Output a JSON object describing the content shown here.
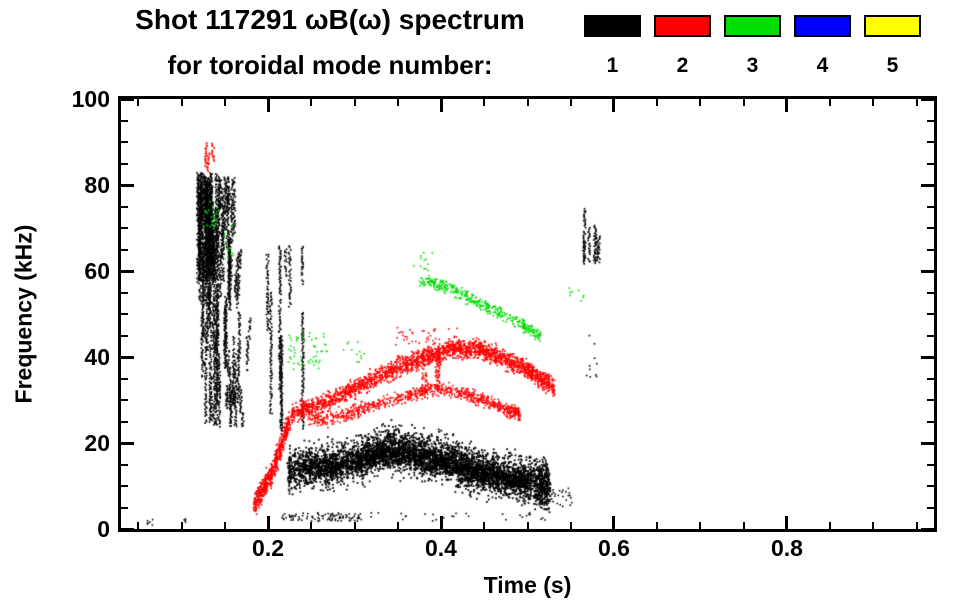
{
  "chart_data": {
    "type": "scatter",
    "title": "Shot 117291 ωB(ω) spectrum",
    "subtitle": "for toroidal mode number:",
    "xlabel": "Time (s)",
    "ylabel": "Frequency (kHz)",
    "xlim": [
      0.03,
      0.97
    ],
    "ylim": [
      0,
      100
    ],
    "xticks": [
      0.2,
      0.4,
      0.6,
      0.8
    ],
    "xtick_labels": [
      "0.2",
      "0.4",
      "0.6",
      "0.8"
    ],
    "yticks": [
      0,
      20,
      40,
      60,
      80,
      100
    ],
    "ytick_labels": [
      "0",
      "20",
      "40",
      "60",
      "80",
      "100"
    ],
    "x_minor_step": 0.05,
    "y_minor_step": 5,
    "grid": false,
    "legend_position": "top-right",
    "legend": [
      {
        "label": "1",
        "color": "#000000"
      },
      {
        "label": "2",
        "color": "#ff0000"
      },
      {
        "label": "3",
        "color": "#00dd00"
      },
      {
        "label": "4",
        "color": "#0000ff"
      },
      {
        "label": "5",
        "color": "#ffff00"
      }
    ],
    "series": [
      {
        "name": "n=1",
        "color": "#000000",
        "clusters": [
          {
            "type": "streaks",
            "t0": 0.118,
            "t1": 0.165,
            "fmin": 24,
            "fmax": 82,
            "n": 55,
            "lmin": 6,
            "lmax": 26
          },
          {
            "type": "streaks",
            "t0": 0.118,
            "t1": 0.142,
            "fmin": 58,
            "fmax": 83,
            "n": 38,
            "lmin": 8,
            "lmax": 22
          },
          {
            "type": "streaks",
            "t0": 0.148,
            "t1": 0.178,
            "fmin": 36,
            "fmax": 68,
            "n": 12,
            "lmin": 4,
            "lmax": 14
          },
          {
            "type": "streaks",
            "t0": 0.15,
            "t1": 0.17,
            "fmin": 24,
            "fmax": 34,
            "n": 6,
            "lmin": 3,
            "lmax": 8
          },
          {
            "type": "streaks",
            "t0": 0.193,
            "t1": 0.245,
            "fmin": 23,
            "fmax": 66,
            "n": 9,
            "lmin": 12,
            "lmax": 36
          },
          {
            "type": "band",
            "pts": [
              [
                0.222,
                14
              ],
              [
                0.25,
                15
              ],
              [
                0.28,
                15
              ],
              [
                0.31,
                17
              ],
              [
                0.335,
                19
              ],
              [
                0.36,
                18
              ],
              [
                0.385,
                17
              ],
              [
                0.41,
                16
              ],
              [
                0.435,
                14
              ],
              [
                0.46,
                13
              ],
              [
                0.485,
                12
              ],
              [
                0.51,
                11
              ],
              [
                0.525,
                10
              ]
            ],
            "w": 5,
            "n": 5200,
            "s": 1.8,
            "ph": 1.2
          },
          {
            "type": "band",
            "pts": [
              [
                0.24,
                14
              ],
              [
                0.3,
                16
              ],
              [
                0.35,
                18
              ],
              [
                0.4,
                16
              ],
              [
                0.45,
                13
              ],
              [
                0.5,
                11
              ]
            ],
            "w": 2.6,
            "n": 2400,
            "s": 1.8,
            "ph": 2.1
          },
          {
            "type": "specks",
            "t0": 0.215,
            "t1": 0.305,
            "fmin": 2,
            "fmax": 4,
            "n": 90
          },
          {
            "type": "specks",
            "t0": 0.305,
            "t1": 0.52,
            "fmin": 2,
            "fmax": 4,
            "n": 30
          },
          {
            "type": "specks",
            "t0": 0.058,
            "t1": 0.066,
            "fmin": 1,
            "fmax": 3,
            "n": 6
          },
          {
            "type": "specks",
            "t0": 0.099,
            "t1": 0.104,
            "fmin": 1.5,
            "fmax": 3,
            "n": 4
          },
          {
            "type": "specks",
            "t0": 0.515,
            "t1": 0.553,
            "fmin": 5,
            "fmax": 10,
            "n": 40
          },
          {
            "type": "streaks",
            "t0": 0.563,
            "t1": 0.585,
            "fmin": 62,
            "fmax": 77,
            "n": 6,
            "lmin": 6,
            "lmax": 14
          },
          {
            "type": "specks",
            "t0": 0.565,
            "t1": 0.58,
            "fmin": 35,
            "fmax": 46,
            "n": 10
          }
        ]
      },
      {
        "name": "n=2",
        "color": "#ff0000",
        "clusters": [
          {
            "type": "streaks",
            "t0": 0.127,
            "t1": 0.136,
            "fmin": 83,
            "fmax": 90,
            "n": 3,
            "lmin": 4,
            "lmax": 7
          },
          {
            "type": "band",
            "pts": [
              [
                0.183,
                6
              ],
              [
                0.195,
                10
              ],
              [
                0.205,
                14
              ],
              [
                0.215,
                20
              ],
              [
                0.224,
                26
              ]
            ],
            "w": 2.4,
            "n": 750,
            "s": 1.7,
            "ph": 0.4
          },
          {
            "type": "band",
            "pts": [
              [
                0.226,
                27
              ],
              [
                0.26,
                29
              ],
              [
                0.3,
                33
              ],
              [
                0.34,
                37
              ],
              [
                0.38,
                40
              ],
              [
                0.41,
                42
              ],
              [
                0.44,
                42
              ],
              [
                0.47,
                40
              ],
              [
                0.5,
                37
              ],
              [
                0.53,
                33
              ]
            ],
            "w": 2.1,
            "n": 2800,
            "s": 1.7,
            "ph": 3.0
          },
          {
            "type": "band",
            "pts": [
              [
                0.245,
                25
              ],
              [
                0.28,
                26
              ],
              [
                0.32,
                29
              ],
              [
                0.36,
                31
              ],
              [
                0.39,
                33
              ],
              [
                0.42,
                32
              ],
              [
                0.45,
                30
              ],
              [
                0.475,
                28
              ],
              [
                0.49,
                27
              ]
            ],
            "w": 1.5,
            "n": 1200,
            "s": 1.6,
            "ph": 4.2
          },
          {
            "type": "streaks",
            "t0": 0.378,
            "t1": 0.4,
            "fmin": 32,
            "fmax": 42,
            "n": 6,
            "lmin": 5,
            "lmax": 10
          },
          {
            "type": "specks",
            "t0": 0.345,
            "t1": 0.42,
            "fmin": 43,
            "fmax": 47,
            "n": 40
          }
        ]
      },
      {
        "name": "n=3",
        "color": "#00dd00",
        "clusters": [
          {
            "type": "specks",
            "t0": 0.125,
            "t1": 0.142,
            "fmin": 70,
            "fmax": 77,
            "n": 22
          },
          {
            "type": "specks",
            "t0": 0.148,
            "t1": 0.163,
            "fmin": 63,
            "fmax": 71,
            "n": 12
          },
          {
            "type": "specks",
            "t0": 0.222,
            "t1": 0.268,
            "fmin": 37,
            "fmax": 46,
            "n": 55
          },
          {
            "type": "specks",
            "t0": 0.285,
            "t1": 0.312,
            "fmin": 39,
            "fmax": 44,
            "n": 12
          },
          {
            "type": "band",
            "pts": [
              [
                0.375,
                58
              ],
              [
                0.4,
                57
              ],
              [
                0.43,
                54
              ],
              [
                0.46,
                51
              ],
              [
                0.49,
                48
              ],
              [
                0.515,
                45
              ]
            ],
            "w": 1.4,
            "n": 520,
            "s": 1.6,
            "ph": 1.8
          },
          {
            "type": "specks",
            "t0": 0.365,
            "t1": 0.392,
            "fmin": 60,
            "fmax": 65,
            "n": 12
          },
          {
            "type": "specks",
            "t0": 0.545,
            "t1": 0.565,
            "fmin": 53,
            "fmax": 57,
            "n": 8
          }
        ]
      },
      {
        "name": "n=4",
        "color": "#0000ff",
        "clusters": []
      },
      {
        "name": "n=5",
        "color": "#ffff00",
        "clusters": []
      }
    ]
  }
}
